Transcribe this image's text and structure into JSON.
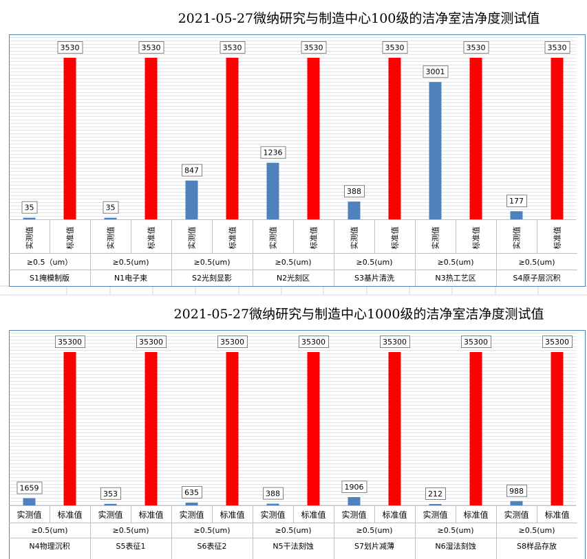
{
  "chart_data": [
    {
      "type": "bar",
      "title": "2021-05-27微纳研究与制造中心100级的洁净室洁净度测试值",
      "groups": [
        "S1掩模制版",
        "N1电子束",
        "S2光刻显影",
        "N2光刻区",
        "S3基片清洗",
        "N3热工艺区",
        "S4原子层沉积"
      ],
      "sub_labels": [
        "≥0.5（um）",
        "≥0.5(um)",
        "≥0.5(um)",
        "≥0.5(um)",
        "≥0.5(um)",
        "≥0.5(um)",
        "≥0.5(um)"
      ],
      "series": [
        {
          "name": "实测值",
          "values": [
            35,
            35,
            847,
            1236,
            388,
            3001,
            177
          ],
          "color": "#4f81bd"
        },
        {
          "name": "标准值",
          "values": [
            3530,
            3530,
            3530,
            3530,
            3530,
            3530,
            3530
          ],
          "color": "#ff0000"
        }
      ],
      "ylim": [
        0,
        4000
      ],
      "category_label_orientation": "vertical"
    },
    {
      "type": "bar",
      "title": "2021-05-27微纳研究与制造中心1000级的洁净室洁净度测试值",
      "groups": [
        "N4物理沉积",
        "S5表征1",
        "S6表征2",
        "N5干法刻蚀",
        "S7划片减薄",
        "N6湿法刻蚀",
        "S8样品存放"
      ],
      "sub_labels": [
        "≥0.5(um)",
        "≥0.5(um)",
        "≥0.5(um)",
        "≥0.5(um)",
        "≥0.5(um)",
        "≥0.5(um)",
        "≥0.5(um)"
      ],
      "series": [
        {
          "name": "实测值",
          "values": [
            1659,
            353,
            635,
            388,
            1906,
            212,
            988
          ],
          "color": "#4f81bd"
        },
        {
          "name": "标准值",
          "values": [
            35300,
            35300,
            35300,
            35300,
            35300,
            35300,
            35300
          ],
          "color": "#ff0000"
        }
      ],
      "ylim": [
        0,
        40000
      ],
      "category_label_orientation": "horizontal"
    }
  ]
}
